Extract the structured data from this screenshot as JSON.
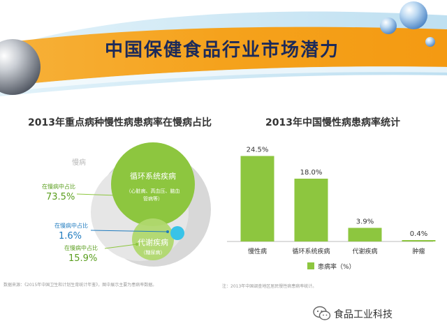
{
  "slide_title": "中国保健食品行业市场潜力",
  "brand": "食品工业科技",
  "left_chart": {
    "title": "2013年重点病种慢性病患病率在慢病占比",
    "outer_label": "慢病",
    "circle_main": {
      "label": "循环系统疾病",
      "sublabel_line1": "（心脏病、高血压、脑血",
      "sublabel_line2": "管病等）"
    },
    "circle_metabolic": {
      "label": "代谢疾病",
      "sublabel": "（糖尿病）"
    },
    "annotations": [
      {
        "caption": "在慢病中占比",
        "value": "73.5%"
      },
      {
        "caption": "在慢病中占比",
        "value": "1.6%"
      },
      {
        "caption": "在慢病中占比",
        "value": "15.9%"
      }
    ],
    "source_note": "数据来源：《2015年中国卫生和计划生育统计年鉴》，图中展示主要为患病率数据。"
  },
  "chart_data": {
    "type": "bar",
    "title": "2013年中国慢性病患病率统计",
    "categories": [
      "慢性病",
      "循环系统疾病",
      "代谢疾病",
      "肿瘤"
    ],
    "series": [
      {
        "name": "患病率（%）",
        "values": [
          24.5,
          18.0,
          3.9,
          0.4
        ],
        "color": "#8dc63f"
      }
    ],
    "value_labels": [
      "24.5%",
      "18.0%",
      "3.9%",
      "0.4%"
    ],
    "ylim": [
      0,
      28
    ],
    "grid": false,
    "legend": "bottom-center",
    "source_note": "注：2013年中国调查地区居民慢性病患病率统计。"
  },
  "colors": {
    "banner_orange": "#f5a21c",
    "banner_blue": "#bfe0f1",
    "bar_green": "#8dc63f",
    "title_navy": "#1c2a5a",
    "label_green": "#5a9e1e",
    "label_blue": "#1f7bbf",
    "circle_grey": "#d8d8d8",
    "circle_cyan": "#38c3e8"
  }
}
